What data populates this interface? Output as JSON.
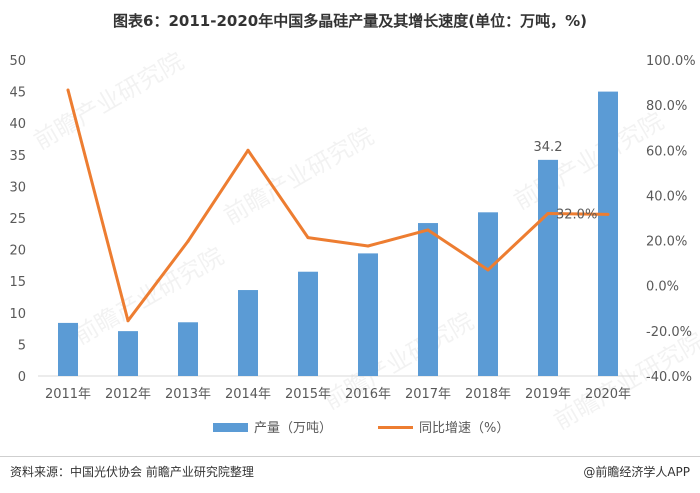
{
  "title": "图表6：2011-2020年中国多晶硅产量及其增长速度(单位：万吨，%)",
  "source": "资料来源：中国光伏协会 前瞻产业研究院整理",
  "brand": "@前瞻经济学人APP",
  "watermark": "前瞻产业研究院",
  "colors": {
    "bar": "#5b9bd5",
    "line": "#ed7d31",
    "axis": "#d9d9d9",
    "text": "#595959"
  },
  "chart_data": {
    "type": "bar",
    "categories": [
      "2011年",
      "2012年",
      "2013年",
      "2014年",
      "2015年",
      "2016年",
      "2017年",
      "2018年",
      "2019年",
      "2020年"
    ],
    "series": [
      {
        "name": "产量（万吨）",
        "type": "bar",
        "axis": "left",
        "values": [
          8.4,
          7.1,
          8.5,
          13.6,
          16.5,
          19.4,
          24.2,
          25.9,
          34.2,
          45.0
        ]
      },
      {
        "name": "同比增速（%）",
        "type": "line",
        "axis": "right",
        "values": [
          86.7,
          -15.5,
          19.7,
          60.0,
          21.3,
          17.6,
          24.7,
          7.0,
          32.0,
          31.6
        ]
      }
    ],
    "data_labels": [
      {
        "series": 0,
        "index": 8,
        "text": "34.2"
      },
      {
        "series": 1,
        "index": 8,
        "text": "32.0%"
      }
    ],
    "yleft": {
      "min": 0,
      "max": 50,
      "step": 5,
      "ticks": [
        "0",
        "5",
        "10",
        "15",
        "20",
        "25",
        "30",
        "35",
        "40",
        "45",
        "50"
      ]
    },
    "yright": {
      "min": -40,
      "max": 100,
      "step": 20,
      "ticks": [
        "-40.0%",
        "-20.0%",
        "0.0%",
        "20.0%",
        "40.0%",
        "60.0%",
        "80.0%",
        "100.0%"
      ]
    },
    "legend": {
      "position": "bottom"
    },
    "grid": false
  }
}
